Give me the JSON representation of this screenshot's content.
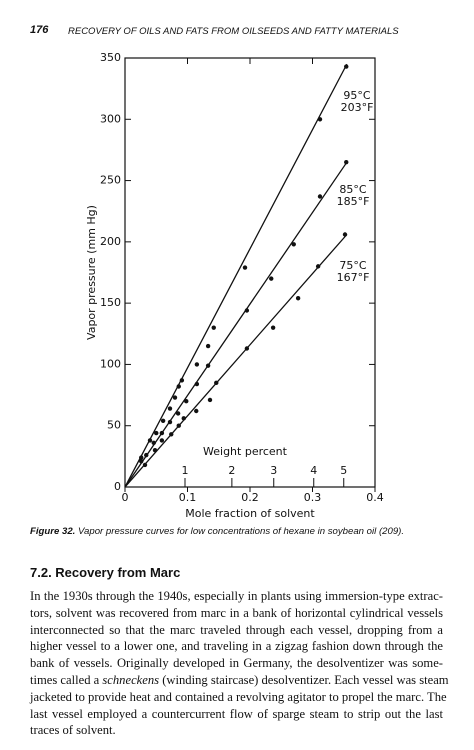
{
  "header": {
    "page_number": "176",
    "running_title": "RECOVERY OF OILS AND FATS FROM OILSEEDS AND FATTY MATERIALS"
  },
  "chart_data": {
    "type": "scatter",
    "ylabel": "Vapor pressure (mm Hg)",
    "xlabel": "Mole fraction of solvent",
    "xlim": [
      0,
      0.4
    ],
    "ylim": [
      0,
      350
    ],
    "xticks": [
      0,
      0.1,
      0.2,
      0.3,
      0.4
    ],
    "yticks": [
      0,
      50,
      100,
      150,
      200,
      250,
      300,
      350
    ],
    "x2label": "Weight percent",
    "x2ticks": [
      {
        "value": 0.096,
        "label": "1"
      },
      {
        "value": 0.171,
        "label": "2"
      },
      {
        "value": 0.238,
        "label": "3"
      },
      {
        "value": 0.302,
        "label": "4"
      },
      {
        "value": 0.35,
        "label": "5"
      }
    ],
    "color": "#111111",
    "series": [
      {
        "name": "95°C",
        "name_f": "203°F",
        "x": [
          0.026,
          0.04,
          0.05,
          0.061,
          0.072,
          0.08,
          0.086,
          0.091,
          0.115,
          0.133,
          0.142,
          0.192,
          0.312,
          0.354
        ],
        "values": [
          24,
          38,
          44,
          54,
          64,
          73,
          82,
          87,
          100,
          115,
          130,
          179,
          300,
          343
        ],
        "curve_x": [
          0,
          0.355
        ],
        "curve_y": [
          0,
          345
        ]
      },
      {
        "name": "85°C",
        "name_f": "185°F",
        "x": [
          0.026,
          0.034,
          0.046,
          0.059,
          0.072,
          0.085,
          0.098,
          0.115,
          0.133,
          0.195,
          0.234,
          0.27,
          0.312,
          0.354
        ],
        "values": [
          21,
          26,
          36,
          44,
          53,
          60,
          70,
          84,
          99,
          144,
          170,
          198,
          237,
          265
        ],
        "curve_x": [
          0,
          0.355
        ],
        "curve_y": [
          0,
          265
        ]
      },
      {
        "name": "75°C",
        "name_f": "167°F",
        "x": [
          0.032,
          0.048,
          0.059,
          0.074,
          0.086,
          0.094,
          0.114,
          0.136,
          0.146,
          0.195,
          0.237,
          0.277,
          0.309,
          0.352
        ],
        "values": [
          18,
          30,
          38,
          43,
          50,
          56,
          62,
          71,
          85,
          113,
          130,
          154,
          180,
          206
        ],
        "curve_x": [
          0,
          0.355
        ],
        "curve_y": [
          0,
          206
        ]
      }
    ]
  },
  "caption": {
    "label": "Figure 32.",
    "text": "Vapor pressure curves for low concentrations of hexane in soybean oil (209)."
  },
  "section": {
    "heading": "7.2. Recovery from Marc",
    "lines": [
      "In the 1930s through the 1940s, especially in plants using immersion-type extrac-",
      "tors, solvent was recovered from marc in a bank of horizontal cylindrical vessels",
      "interconnected so that the marc traveled through each vessel, dropping from a",
      "higher vessel to a lower one, and traveling in a zigzag fashion down through the",
      "bank of vessels. Originally developed in Germany, the desolventizer was some-",
      {
        "before": "times called a ",
        "italic": "schneckens",
        "after": " (winding staircase) desolventizer. Each vessel was steam"
      },
      "jacketed to provide heat and contained a revolving agitator to propel the marc. The",
      "last vessel employed a countercurrent flow of sparge steam to strip out the last",
      "traces of solvent."
    ]
  }
}
